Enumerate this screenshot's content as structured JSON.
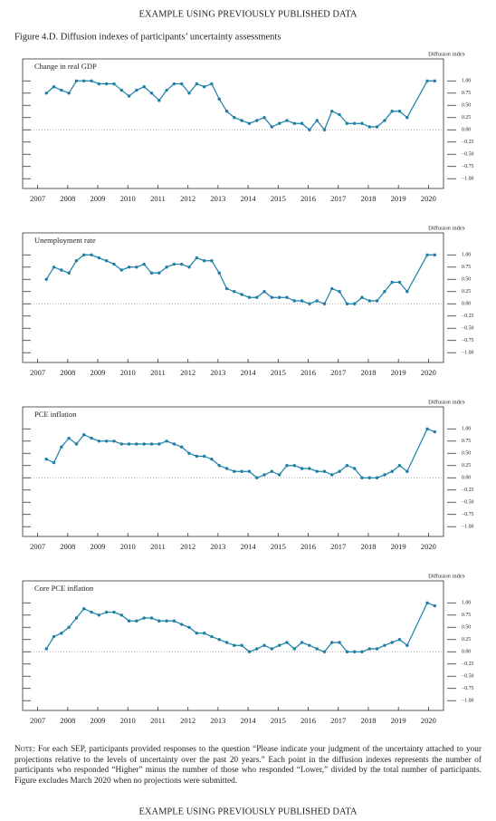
{
  "header": "EXAMPLE USING PREVIOUSLY PUBLISHED DATA",
  "figure_title": "Figure 4.D. Diffusion indexes of participants’ uncertainty assessments",
  "chart_data": [
    {
      "type": "line",
      "title": "Change in real GDP",
      "y_axis_label": "Diffusion index",
      "color": "#1b7fa6",
      "zero_line": true,
      "x": [
        2007.79,
        2008.04,
        2008.29,
        2008.54,
        2008.79,
        2009.04,
        2009.29,
        2009.54,
        2009.79,
        2010.04,
        2010.29,
        2010.54,
        2010.79,
        2011.04,
        2011.29,
        2011.54,
        2011.79,
        2012.04,
        2012.29,
        2012.54,
        2012.79,
        2013.04,
        2013.29,
        2013.54,
        2013.79,
        2014.04,
        2014.29,
        2014.54,
        2014.79,
        2015.04,
        2015.29,
        2015.54,
        2015.79,
        2016.04,
        2016.29,
        2016.54,
        2016.79,
        2017.04,
        2017.29,
        2017.54,
        2017.79,
        2018.04,
        2018.29,
        2018.54,
        2018.79,
        2019.04,
        2019.29,
        2019.54,
        2019.79,
        2020.46,
        2020.71
      ],
      "values": [
        0.75,
        0.88,
        0.81,
        0.75,
        1.0,
        1.0,
        1.0,
        0.94,
        0.94,
        0.94,
        0.81,
        0.69,
        0.81,
        0.88,
        0.75,
        0.6,
        0.81,
        0.94,
        0.94,
        0.75,
        0.94,
        0.88,
        0.94,
        0.63,
        0.38,
        0.25,
        0.19,
        0.13,
        0.19,
        0.25,
        0.06,
        0.13,
        0.19,
        0.13,
        0.13,
        0.0,
        0.19,
        0.0,
        0.38,
        0.31,
        0.13,
        0.13,
        0.13,
        0.06,
        0.06,
        0.19,
        0.38,
        0.38,
        0.25,
        1.0,
        1.0
      ],
      "xlim": [
        2007.0,
        2021.0
      ],
      "xticks": [
        {
          "value": 2007.5,
          "label": "2007"
        },
        {
          "value": 2008.5,
          "label": "2008"
        },
        {
          "value": 2009.5,
          "label": "2009"
        },
        {
          "value": 2010.5,
          "label": "2010"
        },
        {
          "value": 2011.5,
          "label": "2011"
        },
        {
          "value": 2012.5,
          "label": "2012"
        },
        {
          "value": 2013.5,
          "label": "2013"
        },
        {
          "value": 2014.5,
          "label": "2014"
        },
        {
          "value": 2015.5,
          "label": "2015"
        },
        {
          "value": 2016.5,
          "label": "2016"
        },
        {
          "value": 2017.5,
          "label": "2017"
        },
        {
          "value": 2018.5,
          "label": "2018"
        },
        {
          "value": 2019.5,
          "label": "2019"
        },
        {
          "value": 2020.5,
          "label": "2020"
        }
      ],
      "ylim": [
        -1.2,
        1.45
      ],
      "yticks": [
        {
          "value": 1.0,
          "label": "1.00"
        },
        {
          "value": 0.75,
          "label": "0.75"
        },
        {
          "value": 0.5,
          "label": "0.50"
        },
        {
          "value": 0.25,
          "label": "0.25"
        },
        {
          "value": 0,
          "label": "0.00"
        },
        {
          "value": -0.25,
          "label": "−0.25"
        },
        {
          "value": -0.5,
          "label": "−0.50"
        },
        {
          "value": -0.75,
          "label": "−0.75"
        },
        {
          "value": -1.0,
          "label": "−1.00"
        }
      ]
    },
    {
      "type": "line",
      "title": "Unemployment rate",
      "y_axis_label": "Diffusion index",
      "color": "#1b7fa6",
      "zero_line": true,
      "x": [
        2007.79,
        2008.04,
        2008.29,
        2008.54,
        2008.79,
        2009.04,
        2009.29,
        2009.54,
        2009.79,
        2010.04,
        2010.29,
        2010.54,
        2010.79,
        2011.04,
        2011.29,
        2011.54,
        2011.79,
        2012.04,
        2012.29,
        2012.54,
        2012.79,
        2013.04,
        2013.29,
        2013.54,
        2013.79,
        2014.04,
        2014.29,
        2014.54,
        2014.79,
        2015.04,
        2015.29,
        2015.54,
        2015.79,
        2016.04,
        2016.29,
        2016.54,
        2016.79,
        2017.04,
        2017.29,
        2017.54,
        2017.79,
        2018.04,
        2018.29,
        2018.54,
        2018.79,
        2019.04,
        2019.29,
        2019.54,
        2019.79,
        2020.46,
        2020.71
      ],
      "values": [
        0.5,
        0.75,
        0.69,
        0.63,
        0.88,
        1.0,
        1.0,
        0.94,
        0.88,
        0.81,
        0.69,
        0.75,
        0.75,
        0.81,
        0.63,
        0.63,
        0.75,
        0.81,
        0.81,
        0.75,
        0.94,
        0.88,
        0.88,
        0.63,
        0.31,
        0.25,
        0.19,
        0.13,
        0.13,
        0.25,
        0.13,
        0.13,
        0.13,
        0.06,
        0.06,
        0.0,
        0.06,
        0.0,
        0.31,
        0.25,
        0.0,
        0.0,
        0.13,
        0.06,
        0.06,
        0.25,
        0.44,
        0.44,
        0.25,
        1.0,
        1.0
      ],
      "xlim": [
        2007.0,
        2021.0
      ],
      "xticks": [
        {
          "value": 2007.5,
          "label": "2007"
        },
        {
          "value": 2008.5,
          "label": "2008"
        },
        {
          "value": 2009.5,
          "label": "2009"
        },
        {
          "value": 2010.5,
          "label": "2010"
        },
        {
          "value": 2011.5,
          "label": "2011"
        },
        {
          "value": 2012.5,
          "label": "2012"
        },
        {
          "value": 2013.5,
          "label": "2013"
        },
        {
          "value": 2014.5,
          "label": "2014"
        },
        {
          "value": 2015.5,
          "label": "2015"
        },
        {
          "value": 2016.5,
          "label": "2016"
        },
        {
          "value": 2017.5,
          "label": "2017"
        },
        {
          "value": 2018.5,
          "label": "2018"
        },
        {
          "value": 2019.5,
          "label": "2019"
        },
        {
          "value": 2020.5,
          "label": "2020"
        }
      ],
      "ylim": [
        -1.2,
        1.45
      ],
      "yticks": [
        {
          "value": 1.0,
          "label": "1.00"
        },
        {
          "value": 0.75,
          "label": "0.75"
        },
        {
          "value": 0.5,
          "label": "0.50"
        },
        {
          "value": 0.25,
          "label": "0.25"
        },
        {
          "value": 0,
          "label": "0.00"
        },
        {
          "value": -0.25,
          "label": "−0.25"
        },
        {
          "value": -0.5,
          "label": "−0.50"
        },
        {
          "value": -0.75,
          "label": "−0.75"
        },
        {
          "value": -1.0,
          "label": "−1.00"
        }
      ]
    },
    {
      "type": "line",
      "title": "PCE inflation",
      "y_axis_label": "Diffusion index",
      "color": "#1b7fa6",
      "zero_line": true,
      "x": [
        2007.79,
        2008.04,
        2008.29,
        2008.54,
        2008.79,
        2009.04,
        2009.29,
        2009.54,
        2009.79,
        2010.04,
        2010.29,
        2010.54,
        2010.79,
        2011.04,
        2011.29,
        2011.54,
        2011.79,
        2012.04,
        2012.29,
        2012.54,
        2012.79,
        2013.04,
        2013.29,
        2013.54,
        2013.79,
        2014.04,
        2014.29,
        2014.54,
        2014.79,
        2015.04,
        2015.29,
        2015.54,
        2015.79,
        2016.04,
        2016.29,
        2016.54,
        2016.79,
        2017.04,
        2017.29,
        2017.54,
        2017.79,
        2018.04,
        2018.29,
        2018.54,
        2018.79,
        2019.04,
        2019.29,
        2019.54,
        2019.79,
        2020.46,
        2020.71
      ],
      "values": [
        0.38,
        0.31,
        0.63,
        0.81,
        0.69,
        0.88,
        0.81,
        0.75,
        0.75,
        0.75,
        0.69,
        0.69,
        0.69,
        0.69,
        0.69,
        0.69,
        0.75,
        0.69,
        0.63,
        0.5,
        0.44,
        0.44,
        0.38,
        0.25,
        0.19,
        0.13,
        0.13,
        0.13,
        0.0,
        0.06,
        0.13,
        0.06,
        0.25,
        0.25,
        0.19,
        0.19,
        0.13,
        0.13,
        0.06,
        0.13,
        0.25,
        0.19,
        0.0,
        0.0,
        0.0,
        0.06,
        0.13,
        0.25,
        0.13,
        1.0,
        0.94
      ],
      "xlim": [
        2007.0,
        2021.0
      ],
      "xticks": [
        {
          "value": 2007.5,
          "label": "2007"
        },
        {
          "value": 2008.5,
          "label": "2008"
        },
        {
          "value": 2009.5,
          "label": "2009"
        },
        {
          "value": 2010.5,
          "label": "2010"
        },
        {
          "value": 2011.5,
          "label": "2011"
        },
        {
          "value": 2012.5,
          "label": "2012"
        },
        {
          "value": 2013.5,
          "label": "2013"
        },
        {
          "value": 2014.5,
          "label": "2014"
        },
        {
          "value": 2015.5,
          "label": "2015"
        },
        {
          "value": 2016.5,
          "label": "2016"
        },
        {
          "value": 2017.5,
          "label": "2017"
        },
        {
          "value": 2018.5,
          "label": "2018"
        },
        {
          "value": 2019.5,
          "label": "2019"
        },
        {
          "value": 2020.5,
          "label": "2020"
        }
      ],
      "ylim": [
        -1.2,
        1.45
      ],
      "yticks": [
        {
          "value": 1.0,
          "label": "1.00"
        },
        {
          "value": 0.75,
          "label": "0.75"
        },
        {
          "value": 0.5,
          "label": "0.50"
        },
        {
          "value": 0.25,
          "label": "0.25"
        },
        {
          "value": 0,
          "label": "0.00"
        },
        {
          "value": -0.25,
          "label": "−0.25"
        },
        {
          "value": -0.5,
          "label": "−0.50"
        },
        {
          "value": -0.75,
          "label": "−0.75"
        },
        {
          "value": -1.0,
          "label": "−1.00"
        }
      ]
    },
    {
      "type": "line",
      "title": "Core PCE inflation",
      "y_axis_label": "Diffusion index",
      "color": "#1b7fa6",
      "zero_line": true,
      "x": [
        2007.79,
        2008.04,
        2008.29,
        2008.54,
        2008.79,
        2009.04,
        2009.29,
        2009.54,
        2009.79,
        2010.04,
        2010.29,
        2010.54,
        2010.79,
        2011.04,
        2011.29,
        2011.54,
        2011.79,
        2012.04,
        2012.29,
        2012.54,
        2012.79,
        2013.04,
        2013.29,
        2013.54,
        2013.79,
        2014.04,
        2014.29,
        2014.54,
        2014.79,
        2015.04,
        2015.29,
        2015.54,
        2015.79,
        2016.04,
        2016.29,
        2016.54,
        2016.79,
        2017.04,
        2017.29,
        2017.54,
        2017.79,
        2018.04,
        2018.29,
        2018.54,
        2018.79,
        2019.04,
        2019.29,
        2019.54,
        2019.79,
        2020.46,
        2020.71
      ],
      "values": [
        0.06,
        0.31,
        0.38,
        0.5,
        0.69,
        0.88,
        0.81,
        0.75,
        0.81,
        0.81,
        0.75,
        0.63,
        0.63,
        0.69,
        0.69,
        0.63,
        0.63,
        0.63,
        0.56,
        0.5,
        0.38,
        0.38,
        0.31,
        0.25,
        0.19,
        0.13,
        0.13,
        0.0,
        0.06,
        0.13,
        0.06,
        0.13,
        0.19,
        0.06,
        0.19,
        0.13,
        0.06,
        0.0,
        0.19,
        0.19,
        0.0,
        0.0,
        0.0,
        0.06,
        0.06,
        0.13,
        0.19,
        0.25,
        0.13,
        1.0,
        0.94
      ],
      "xlim": [
        2007.0,
        2021.0
      ],
      "xticks": [
        {
          "value": 2007.5,
          "label": "2007"
        },
        {
          "value": 2008.5,
          "label": "2008"
        },
        {
          "value": 2009.5,
          "label": "2009"
        },
        {
          "value": 2010.5,
          "label": "2010"
        },
        {
          "value": 2011.5,
          "label": "2011"
        },
        {
          "value": 2012.5,
          "label": "2012"
        },
        {
          "value": 2013.5,
          "label": "2013"
        },
        {
          "value": 2014.5,
          "label": "2014"
        },
        {
          "value": 2015.5,
          "label": "2015"
        },
        {
          "value": 2016.5,
          "label": "2016"
        },
        {
          "value": 2017.5,
          "label": "2017"
        },
        {
          "value": 2018.5,
          "label": "2018"
        },
        {
          "value": 2019.5,
          "label": "2019"
        },
        {
          "value": 2020.5,
          "label": "2020"
        }
      ],
      "ylim": [
        -1.2,
        1.45
      ],
      "yticks": [
        {
          "value": 1.0,
          "label": "1.00"
        },
        {
          "value": 0.75,
          "label": "0.75"
        },
        {
          "value": 0.5,
          "label": "0.50"
        },
        {
          "value": 0.25,
          "label": "0.25"
        },
        {
          "value": 0,
          "label": "0.00"
        },
        {
          "value": -0.25,
          "label": "−0.25"
        },
        {
          "value": -0.5,
          "label": "−0.50"
        },
        {
          "value": -0.75,
          "label": "−0.75"
        },
        {
          "value": -1.0,
          "label": "−1.00"
        }
      ]
    }
  ],
  "note_label": "Note:",
  "note": "For each SEP, participants provided responses to the question “Please indicate your judgment of the uncertainty attached to your projections relative to the levels of uncertainty over the past 20 years.” Each point in the diffusion indexes represents the number of participants who responded “Higher” minus the number of those who responded “Lower,” divided by the total number of participants. Figure excludes March 2020 when no projections were submitted.",
  "footer": "EXAMPLE USING PREVIOUSLY PUBLISHED DATA"
}
